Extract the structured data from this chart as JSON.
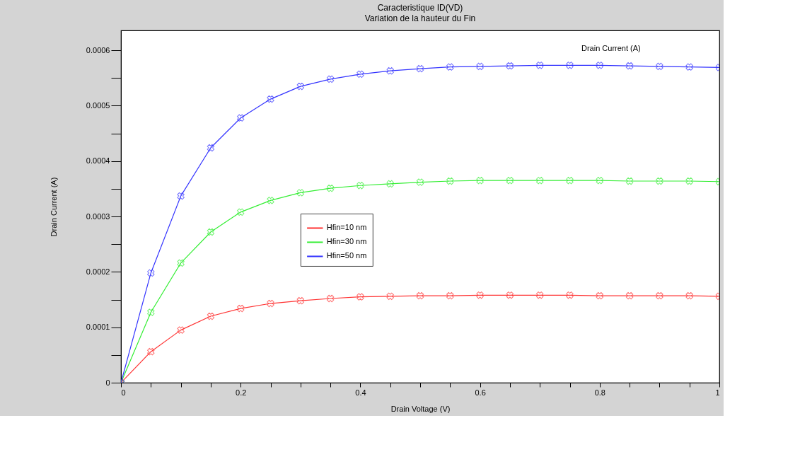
{
  "chart_data": {
    "type": "line",
    "title": "Caracteristique ID(VD)",
    "subtitle": "Variation de la hauteur du Fin",
    "xlabel": "Drain Voltage (V)",
    "ylabel": "Drain Current (A)",
    "x": [
      0,
      0.05,
      0.1,
      0.15,
      0.2,
      0.25,
      0.3,
      0.35,
      0.4,
      0.45,
      0.5,
      0.55,
      0.6,
      0.65,
      0.7,
      0.75,
      0.8,
      0.85,
      0.9,
      0.95,
      1
    ],
    "series": [
      {
        "name": "Hfin=10 nm",
        "color": "#ff3333",
        "values": [
          0,
          5.6e-05,
          9.5e-05,
          0.00012,
          0.000134,
          0.000143,
          0.000148,
          0.000152,
          0.000155,
          0.000156,
          0.000157,
          0.000157,
          0.000158,
          0.000158,
          0.000158,
          0.000158,
          0.000157,
          0.000157,
          0.000157,
          0.000157,
          0.000156
        ]
      },
      {
        "name": "Hfin=30 nm",
        "color": "#33ee33",
        "values": [
          0,
          0.000127,
          0.000216,
          0.000272,
          0.000308,
          0.000329,
          0.000343,
          0.000351,
          0.000356,
          0.000359,
          0.000362,
          0.000364,
          0.000365,
          0.000365,
          0.000365,
          0.000365,
          0.000365,
          0.000364,
          0.000364,
          0.000364,
          0.000363
        ]
      },
      {
        "name": "Hfin=50 nm",
        "color": "#3333ff",
        "values": [
          0,
          0.000198,
          0.000337,
          0.000424,
          0.000478,
          0.000512,
          0.000535,
          0.000548,
          0.000557,
          0.000563,
          0.000567,
          0.00057,
          0.000571,
          0.000572,
          0.000573,
          0.000573,
          0.000573,
          0.000572,
          0.000571,
          0.00057,
          0.000569
        ]
      }
    ],
    "annotations": [
      "Drain Current (A)"
    ],
    "xlim": [
      0,
      1
    ],
    "ylim": [
      0,
      0.000636
    ],
    "xticks": [
      0,
      {
        "value": 0.05,
        "label": null
      },
      {
        "value": 0.1,
        "label": null
      },
      {
        "value": 0.15,
        "label": null
      },
      0.2,
      {
        "value": 0.25,
        "label": null
      },
      {
        "value": 0.3,
        "label": null
      },
      {
        "value": 0.35,
        "label": null
      },
      0.4,
      {
        "value": 0.45,
        "label": null
      },
      {
        "value": 0.5,
        "label": null
      },
      {
        "value": 0.55,
        "label": null
      },
      0.6,
      {
        "value": 0.65,
        "label": null
      },
      {
        "value": 0.7,
        "label": null
      },
      {
        "value": 0.75,
        "label": null
      },
      0.8,
      {
        "value": 0.85,
        "label": null
      },
      {
        "value": 0.9,
        "label": null
      },
      {
        "value": 0.95,
        "label": null
      },
      1
    ],
    "yticks": [
      0,
      {
        "value": 5e-05,
        "label": null
      },
      0.0001,
      {
        "value": 0.00015,
        "label": null
      },
      0.0002,
      {
        "value": 0.00025,
        "label": null
      },
      0.0003,
      {
        "value": 0.00035,
        "label": null
      },
      0.0004,
      {
        "value": 0.00045,
        "label": null
      },
      0.0005,
      {
        "value": 0.00055,
        "label": null
      },
      0.0006
    ],
    "grid": false,
    "legend": "left",
    "marker": "cross",
    "line_style": "solid"
  }
}
